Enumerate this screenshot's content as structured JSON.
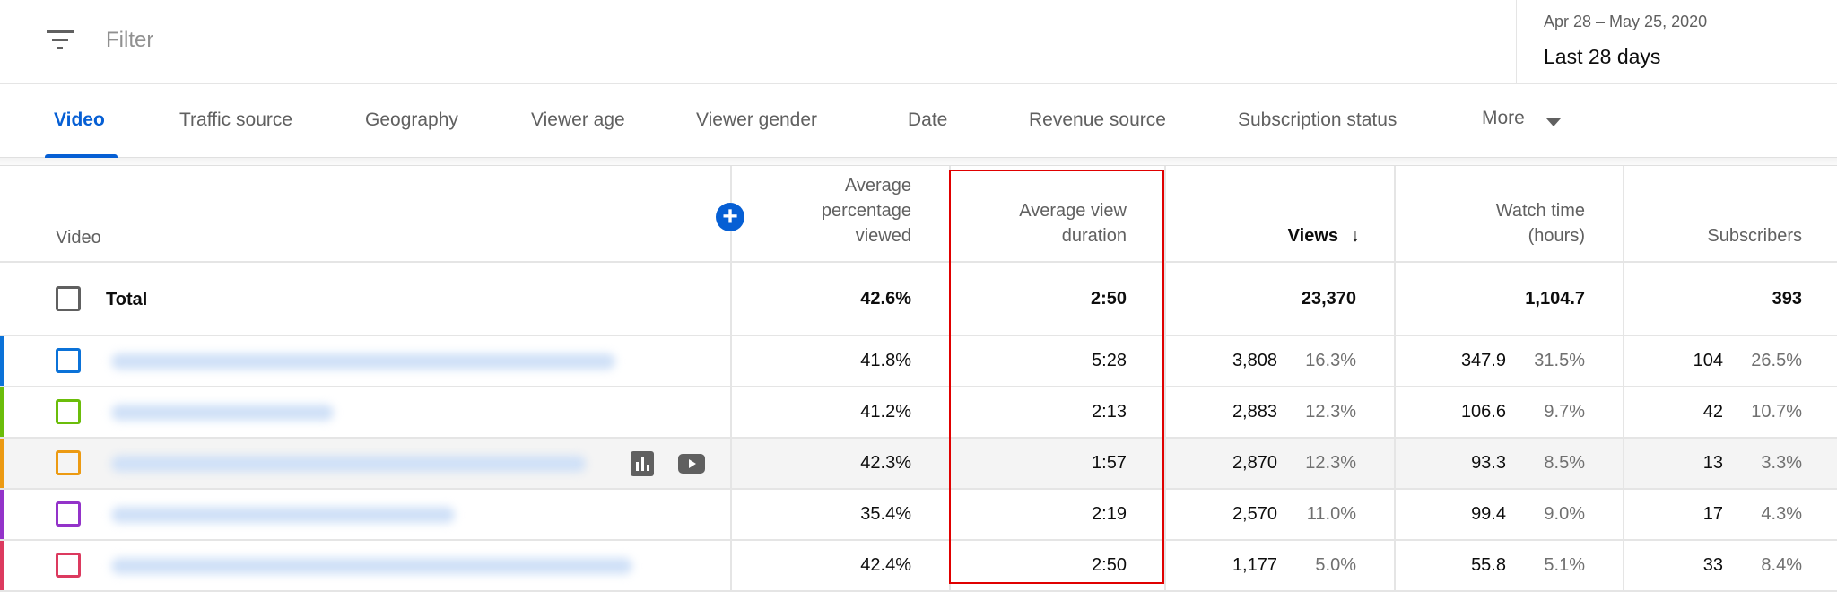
{
  "filter": {
    "placeholder": "Filter",
    "icon": "filter-icon"
  },
  "date": {
    "range": "Apr 28 – May 25, 2020",
    "label": "Last 28 days"
  },
  "tabs": [
    {
      "label": "Video",
      "active": true
    },
    {
      "label": "Traffic source"
    },
    {
      "label": "Geography"
    },
    {
      "label": "Viewer age"
    },
    {
      "label": "Viewer gender"
    },
    {
      "label": "Date"
    },
    {
      "label": "Revenue source"
    },
    {
      "label": "Subscription status"
    },
    {
      "label": "More"
    }
  ],
  "colors": {
    "accent": "#065fd4",
    "highlight": "#e00000",
    "row_colors": [
      "#0b72d8",
      "#6bbd0a",
      "#ec9a12",
      "#9333c9",
      "#dc3a5f"
    ]
  },
  "table": {
    "headers": {
      "video": "Video",
      "avg_pct": "Average percentage viewed",
      "avg_dur": "Average view duration",
      "views": "Views",
      "watch": "Watch time (hours)",
      "subs": "Subscribers"
    },
    "sort": "views-descending",
    "total": {
      "label": "Total",
      "avg_pct": "42.6%",
      "avg_dur": "2:50",
      "views": "23,370",
      "watch": "1,104.7",
      "subs": "393"
    },
    "rows": [
      {
        "avg_pct": "41.8%",
        "avg_dur": "5:28",
        "views": "3,808",
        "views_pct": "16.3%",
        "watch": "347.9",
        "watch_pct": "31.5%",
        "subs": "104",
        "subs_pct": "26.5%"
      },
      {
        "avg_pct": "41.2%",
        "avg_dur": "2:13",
        "views": "2,883",
        "views_pct": "12.3%",
        "watch": "106.6",
        "watch_pct": "9.7%",
        "subs": "42",
        "subs_pct": "10.7%"
      },
      {
        "avg_pct": "42.3%",
        "avg_dur": "1:57",
        "views": "2,870",
        "views_pct": "12.3%",
        "watch": "93.3",
        "watch_pct": "8.5%",
        "subs": "13",
        "subs_pct": "3.3%",
        "hovered": true
      },
      {
        "avg_pct": "35.4%",
        "avg_dur": "2:19",
        "views": "2,570",
        "views_pct": "11.0%",
        "watch": "99.4",
        "watch_pct": "9.0%",
        "subs": "17",
        "subs_pct": "4.3%"
      },
      {
        "avg_pct": "42.4%",
        "avg_dur": "2:50",
        "views": "1,177",
        "views_pct": "5.0%",
        "watch": "55.8",
        "watch_pct": "5.1%",
        "subs": "33",
        "subs_pct": "8.4%"
      }
    ]
  }
}
